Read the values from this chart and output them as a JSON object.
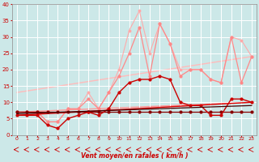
{
  "xlabel": "Vent moyen/en rafales ( km/h )",
  "xlim": [
    -0.5,
    23.5
  ],
  "ylim": [
    0,
    40
  ],
  "xticks": [
    0,
    1,
    2,
    3,
    4,
    5,
    6,
    7,
    8,
    9,
    10,
    11,
    12,
    13,
    14,
    15,
    16,
    17,
    18,
    19,
    20,
    21,
    22,
    23
  ],
  "yticks": [
    0,
    5,
    10,
    15,
    20,
    25,
    30,
    35,
    40
  ],
  "bg_color": "#cce8e8",
  "grid_color": "#ffffff",
  "series": [
    {
      "x": [
        0,
        1,
        2,
        3,
        4,
        5,
        6,
        7,
        8,
        9,
        10,
        11,
        12,
        13,
        14,
        15,
        16,
        17,
        18,
        19,
        20,
        21,
        22,
        23
      ],
      "y": [
        7,
        7,
        7,
        4,
        4,
        8,
        8,
        13,
        8,
        13,
        20,
        32,
        38,
        25,
        34,
        28,
        20,
        20,
        20,
        17,
        16,
        30,
        29,
        24
      ],
      "color": "#ffaaaa",
      "lw": 0.8,
      "marker": "o",
      "ms": 1.8,
      "ls": "-",
      "zorder": 2
    },
    {
      "x": [
        0,
        1,
        2,
        3,
        4,
        5,
        6,
        7,
        8,
        9,
        10,
        11,
        12,
        13,
        14,
        15,
        16,
        17,
        18,
        19,
        20,
        21,
        22,
        23
      ],
      "y": [
        7,
        7,
        7,
        4,
        4,
        8,
        8,
        11,
        8,
        13,
        18,
        25,
        33,
        18,
        34,
        28,
        18,
        20,
        20,
        17,
        16,
        30,
        16,
        24
      ],
      "color": "#ff8888",
      "lw": 0.9,
      "marker": "o",
      "ms": 2.0,
      "ls": "-",
      "zorder": 3
    },
    {
      "x": [
        0,
        23
      ],
      "y": [
        13,
        24
      ],
      "color": "#ffbbbb",
      "lw": 1.0,
      "marker": "none",
      "ms": 0,
      "ls": "-",
      "zorder": 1
    },
    {
      "x": [
        0,
        23
      ],
      "y": [
        7,
        10
      ],
      "color": "#ff9999",
      "lw": 1.0,
      "marker": "none",
      "ms": 0,
      "ls": "-",
      "zorder": 1
    },
    {
      "x": [
        0,
        1,
        2,
        3,
        4,
        5,
        6,
        7,
        8,
        9,
        10,
        11,
        12,
        13,
        14,
        15,
        16,
        17,
        18,
        19,
        20,
        21,
        22,
        23
      ],
      "y": [
        6,
        6,
        6,
        3,
        2,
        5,
        6,
        7,
        6,
        8,
        13,
        16,
        17,
        17,
        18,
        17,
        10,
        9,
        9,
        6,
        6,
        11,
        11,
        10
      ],
      "color": "#cc0000",
      "lw": 1.0,
      "marker": "o",
      "ms": 2.0,
      "ls": "-",
      "zorder": 5
    },
    {
      "x": [
        0,
        1,
        2,
        3,
        4,
        5,
        6,
        7,
        8,
        9,
        10,
        11,
        12,
        13,
        14,
        15,
        16,
        17,
        18,
        19,
        20,
        21,
        22,
        23
      ],
      "y": [
        7,
        7,
        7,
        7,
        7,
        7,
        7,
        7,
        7,
        7,
        7,
        7,
        7,
        7,
        7,
        7,
        7,
        7,
        7,
        7,
        7,
        7,
        7,
        7
      ],
      "color": "#880000",
      "lw": 0.9,
      "marker": "o",
      "ms": 2.0,
      "ls": "-",
      "zorder": 4
    },
    {
      "x": [
        0,
        23
      ],
      "y": [
        6,
        10
      ],
      "color": "#dd0000",
      "lw": 1.0,
      "marker": "none",
      "ms": 0,
      "ls": "-",
      "zorder": 3
    },
    {
      "x": [
        0,
        23
      ],
      "y": [
        6.5,
        9
      ],
      "color": "#440000",
      "lw": 0.9,
      "marker": "none",
      "ms": 0,
      "ls": "-",
      "zorder": 6
    }
  ],
  "arrow_color": "#cc0000",
  "xlabel_color": "#cc0000",
  "ytick_color": "#cc0000",
  "xtick_color": "#cc0000"
}
